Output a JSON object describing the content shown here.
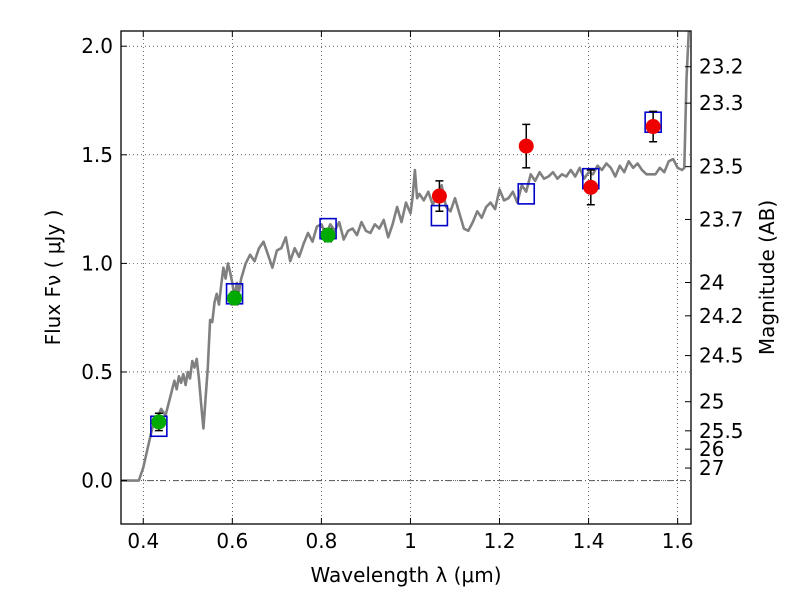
{
  "chart_data": {
    "type": "scatter",
    "xlabel": "Wavelength  λ (μm)",
    "ylabel": "Flux  Fν  ( μJy )",
    "y2label": "Magnitude (AB)",
    "xlim": [
      0.35,
      1.63
    ],
    "ylim": [
      -0.2,
      2.07
    ],
    "grid": true,
    "x_ticks": [
      {
        "value": 0.4,
        "label": "0.4"
      },
      {
        "value": 0.6,
        "label": "0.6"
      },
      {
        "value": 0.8,
        "label": "0.8"
      },
      {
        "value": 1.0,
        "label": "1"
      },
      {
        "value": 1.2,
        "label": "1.2"
      },
      {
        "value": 1.4,
        "label": "1.4"
      },
      {
        "value": 1.6,
        "label": "1.6"
      }
    ],
    "y_ticks": [
      {
        "value": 0.0,
        "label": "0.0"
      },
      {
        "value": 0.5,
        "label": "0.5"
      },
      {
        "value": 1.0,
        "label": "1.0"
      },
      {
        "value": 1.5,
        "label": "1.5"
      },
      {
        "value": 2.0,
        "label": "2.0"
      }
    ],
    "magnitude_ticks": [
      {
        "mag": 23.2,
        "label": "23.2"
      },
      {
        "mag": 23.3,
        "label": "23.3"
      },
      {
        "mag": 23.5,
        "label": "23.5"
      },
      {
        "mag": 23.7,
        "label": "23.7"
      },
      {
        "mag": 24.0,
        "label": "24"
      },
      {
        "mag": 24.2,
        "label": "24.2"
      },
      {
        "mag": 24.5,
        "label": "24.5"
      },
      {
        "mag": 25.0,
        "label": "25"
      },
      {
        "mag": 25.5,
        "label": "25.5"
      },
      {
        "mag": 26.0,
        "label": "26"
      },
      {
        "mag": 27.0,
        "label": "27"
      }
    ],
    "series": [
      {
        "kind": "line",
        "color": "#808080",
        "x": [
          0.35,
          0.39,
          0.4,
          0.41,
          0.42,
          0.43,
          0.44,
          0.45,
          0.46,
          0.47,
          0.475,
          0.48,
          0.485,
          0.49,
          0.495,
          0.5,
          0.505,
          0.51,
          0.515,
          0.52,
          0.525,
          0.53,
          0.535,
          0.54,
          0.545,
          0.55,
          0.555,
          0.56,
          0.565,
          0.57,
          0.575,
          0.58,
          0.585,
          0.59,
          0.595,
          0.6,
          0.605,
          0.61,
          0.615,
          0.62,
          0.63,
          0.64,
          0.65,
          0.66,
          0.67,
          0.68,
          0.69,
          0.7,
          0.71,
          0.72,
          0.73,
          0.74,
          0.75,
          0.76,
          0.77,
          0.78,
          0.79,
          0.8,
          0.81,
          0.82,
          0.83,
          0.84,
          0.85,
          0.86,
          0.87,
          0.88,
          0.89,
          0.9,
          0.91,
          0.92,
          0.93,
          0.94,
          0.95,
          0.96,
          0.97,
          0.98,
          0.99,
          1.0,
          1.005,
          1.01,
          1.015,
          1.02,
          1.03,
          1.04,
          1.05,
          1.06,
          1.07,
          1.08,
          1.09,
          1.1,
          1.11,
          1.12,
          1.13,
          1.14,
          1.15,
          1.16,
          1.17,
          1.18,
          1.19,
          1.2,
          1.21,
          1.22,
          1.23,
          1.24,
          1.25,
          1.26,
          1.27,
          1.28,
          1.29,
          1.3,
          1.31,
          1.32,
          1.33,
          1.34,
          1.35,
          1.36,
          1.37,
          1.38,
          1.39,
          1.4,
          1.41,
          1.42,
          1.43,
          1.44,
          1.45,
          1.46,
          1.47,
          1.48,
          1.49,
          1.5,
          1.51,
          1.52,
          1.53,
          1.54,
          1.55,
          1.56,
          1.57,
          1.58,
          1.59,
          1.6,
          1.61,
          1.615,
          1.62,
          1.625
        ],
        "y": [
          0.0,
          0.0,
          0.06,
          0.15,
          0.24,
          0.28,
          0.33,
          0.3,
          0.38,
          0.46,
          0.42,
          0.48,
          0.45,
          0.49,
          0.44,
          0.5,
          0.47,
          0.55,
          0.52,
          0.56,
          0.47,
          0.35,
          0.24,
          0.38,
          0.52,
          0.74,
          0.73,
          0.82,
          0.86,
          0.81,
          0.9,
          0.98,
          0.93,
          1.0,
          0.96,
          0.91,
          0.84,
          0.91,
          0.87,
          0.93,
          1.0,
          1.04,
          1.01,
          1.07,
          1.1,
          1.04,
          0.98,
          1.06,
          1.07,
          1.12,
          1.01,
          1.07,
          1.03,
          1.09,
          1.14,
          1.1,
          1.17,
          1.18,
          1.13,
          1.18,
          1.15,
          1.19,
          1.11,
          1.15,
          1.16,
          1.13,
          1.19,
          1.15,
          1.14,
          1.18,
          1.16,
          1.2,
          1.12,
          1.18,
          1.26,
          1.19,
          1.28,
          1.23,
          1.31,
          1.43,
          1.3,
          1.32,
          1.29,
          1.33,
          1.27,
          1.31,
          1.36,
          1.26,
          1.24,
          1.3,
          1.23,
          1.16,
          1.15,
          1.19,
          1.24,
          1.21,
          1.26,
          1.28,
          1.25,
          1.34,
          1.29,
          1.3,
          1.33,
          1.28,
          1.36,
          1.33,
          1.41,
          1.38,
          1.42,
          1.39,
          1.4,
          1.42,
          1.39,
          1.41,
          1.4,
          1.43,
          1.4,
          1.44,
          1.39,
          1.42,
          1.41,
          1.45,
          1.43,
          1.46,
          1.44,
          1.4,
          1.45,
          1.42,
          1.47,
          1.44,
          1.46,
          1.43,
          1.41,
          1.41,
          1.41,
          1.44,
          1.42,
          1.47,
          1.48,
          1.44,
          1.43,
          1.44,
          1.85,
          2.07
        ]
      },
      {
        "kind": "open-square",
        "color": "#0000cc",
        "x": [
          0.435,
          0.605,
          0.815,
          1.065,
          1.26,
          1.405,
          1.545
        ],
        "y": [
          0.25,
          0.86,
          1.16,
          1.22,
          1.32,
          1.39,
          1.65
        ]
      },
      {
        "kind": "point-errorbar",
        "color": "#00aa00",
        "x": [
          0.435,
          0.605,
          0.815
        ],
        "y": [
          0.27,
          0.84,
          1.13
        ],
        "err": [
          0.04,
          0.03,
          0.03
        ]
      },
      {
        "kind": "point-errorbar",
        "color": "#ee0000",
        "x": [
          1.065,
          1.26,
          1.405,
          1.545
        ],
        "y": [
          1.31,
          1.54,
          1.35,
          1.63
        ],
        "err": [
          0.07,
          0.1,
          0.08,
          0.07
        ]
      }
    ]
  }
}
